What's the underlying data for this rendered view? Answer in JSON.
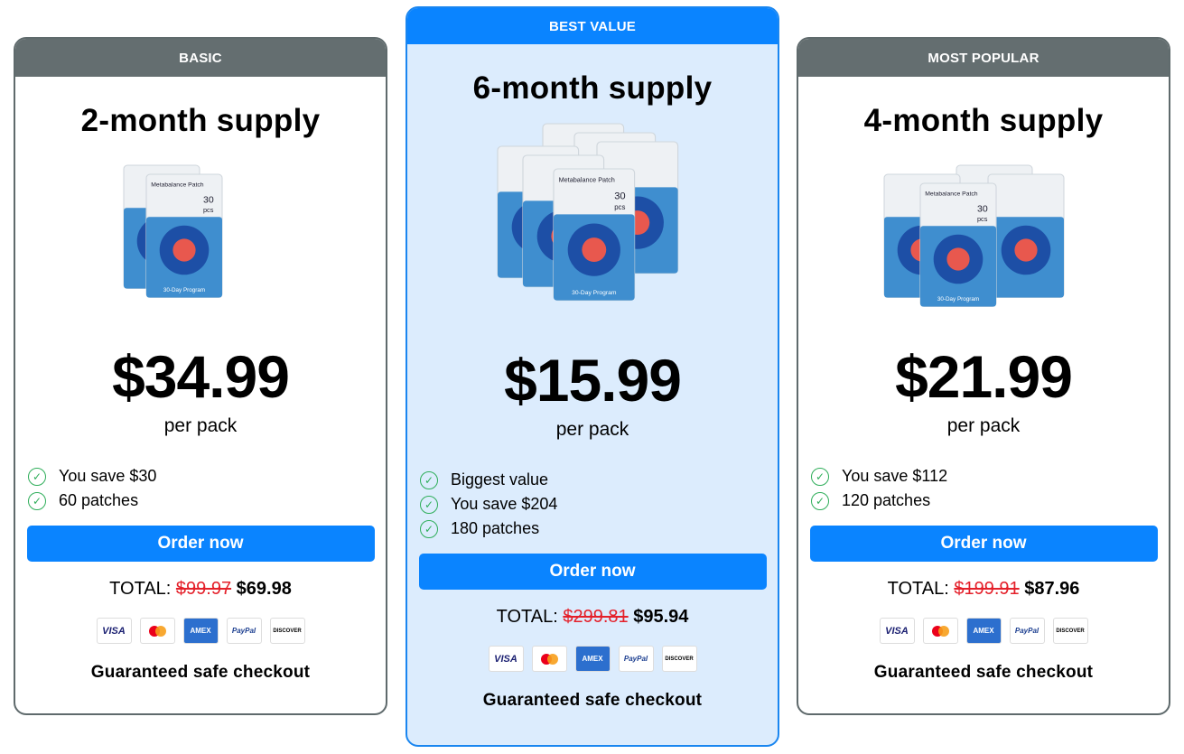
{
  "cards": [
    {
      "badge": "BASIC",
      "title": "2-month supply",
      "packs": 2,
      "price": "$34.99",
      "per": "per pack",
      "features": [
        "You save $30",
        "60 patches"
      ],
      "button": "Order now",
      "total_label": "TOTAL:",
      "old_total": "$99.97",
      "new_total": "$69.98",
      "guarantee": "Guaranteed safe checkout"
    },
    {
      "badge": "BEST VALUE",
      "title": "6-month supply",
      "packs": 6,
      "price": "$15.99",
      "per": "per pack",
      "features": [
        "Biggest value",
        "You save $204",
        "180 patches"
      ],
      "button": "Order now",
      "total_label": "TOTAL:",
      "old_total": "$299.81",
      "new_total": "$95.94",
      "guarantee": "Guaranteed safe checkout"
    },
    {
      "badge": "MOST POPULAR",
      "title": "4-month supply",
      "packs": 4,
      "price": "$21.99",
      "per": "per pack",
      "features": [
        "You save $112",
        "120 patches"
      ],
      "button": "Order now",
      "total_label": "TOTAL:",
      "old_total": "$199.91",
      "new_total": "$87.96",
      "guarantee": "Guaranteed safe checkout"
    }
  ],
  "product": {
    "name": "Metabalance Patch",
    "count": "30",
    "unit": "pcs",
    "program": "30-Day Program"
  },
  "payments": [
    "VISA",
    "mastercard",
    "AMEX",
    "PayPal",
    "DISCOVER"
  ],
  "colors": {
    "accent": "#0a84ff",
    "header_gray": "#646e70",
    "best_bg": "#dcecfd",
    "check": "#2fae5a",
    "old_price": "#e4202a"
  }
}
